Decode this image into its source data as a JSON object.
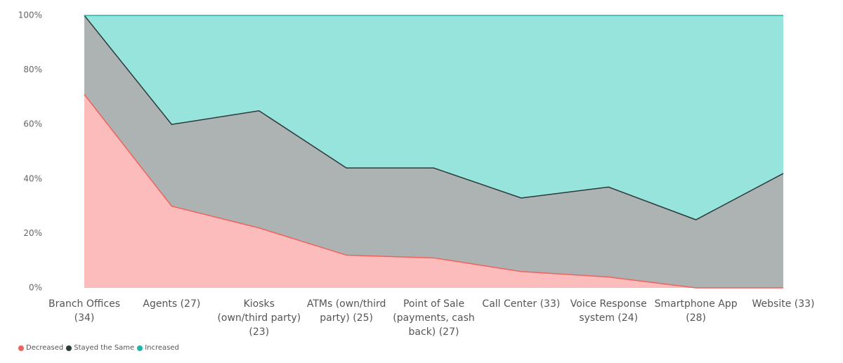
{
  "chart_data": {
    "type": "stacked_area_100",
    "categories": [
      "Branch Offices (34)",
      "Agents (27)",
      "Kiosks (own/third party) (23)",
      "ATMs (own/third party) (25)",
      "Point of Sale (payments, cash back) (27)",
      "Call Center (33)",
      "Voice Response system (24)",
      "Smartphone App (28)",
      "Website (33)"
    ],
    "series": [
      {
        "name": "Decreased",
        "color": "#f0625c",
        "fill": "#fbbcbb",
        "values": [
          71,
          30,
          22,
          12,
          11,
          6,
          4,
          0,
          0
        ]
      },
      {
        "name": "Stayed the Same",
        "color": "#2b3a3a",
        "fill": "#adb3b3",
        "values": [
          29,
          30,
          43,
          32,
          33,
          27,
          33,
          25,
          42
        ]
      },
      {
        "name": "Increased",
        "color": "#20b3a6",
        "fill": "#97e4dc",
        "values": [
          0,
          40,
          35,
          56,
          56,
          67,
          63,
          75,
          58
        ]
      }
    ],
    "ylim": [
      0,
      100
    ],
    "yticks": [
      {
        "value": 0,
        "label": "0%"
      },
      {
        "value": 20,
        "label": "20%"
      },
      {
        "value": 40,
        "label": "40%"
      },
      {
        "value": 60,
        "label": "60%"
      },
      {
        "value": 80,
        "label": "80%"
      },
      {
        "value": 100,
        "label": "100%"
      }
    ],
    "legend": "bottom-left"
  }
}
